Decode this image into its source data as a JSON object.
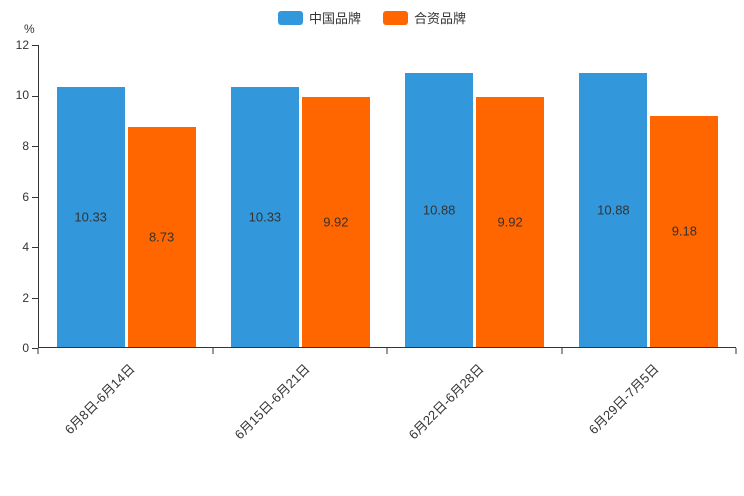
{
  "chart_data": {
    "type": "bar",
    "title": "",
    "categories": [
      "6月8日-6月14日",
      "6月15日-6月21日",
      "6月22日-6月28日",
      "6月29日-7月5日"
    ],
    "series": [
      {
        "name": "中国品牌",
        "color": "#3398db",
        "values": [
          10.33,
          10.33,
          10.88,
          10.88
        ]
      },
      {
        "name": "合资品牌",
        "color": "#ff6600",
        "values": [
          8.73,
          9.92,
          9.92,
          9.18
        ]
      }
    ],
    "xlabel": "",
    "ylabel": "%",
    "ylim": [
      0,
      12
    ],
    "yticks": [
      0,
      2,
      4,
      6,
      8,
      10,
      12
    ],
    "grid": false,
    "legend_position": "top",
    "value_label_decimals": 2,
    "axis_color": "#333333",
    "label_color": "#333333"
  }
}
